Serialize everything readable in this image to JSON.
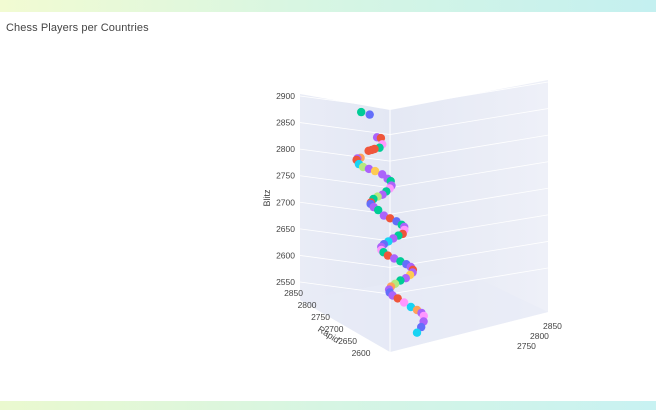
{
  "title": "Chess Players per Countries",
  "chart_data": {
    "type": "scatter",
    "title": "Chess Players per Countries",
    "axes": {
      "z": {
        "label": "Blitz",
        "ticks": [
          2550,
          2600,
          2650,
          2700,
          2750,
          2800,
          2850,
          2900
        ],
        "range": [
          2550,
          2900
        ]
      },
      "y": {
        "label": "Rapid",
        "ticks": [
          2600,
          2650,
          2700,
          2750,
          2800,
          2850
        ]
      },
      "x": {
        "label": "",
        "ticks": [
          2750,
          2800,
          2850
        ]
      }
    },
    "grid": true,
    "points": [
      {
        "rapid": 2760,
        "blitz": 2878,
        "color": "#00cc96"
      },
      {
        "rapid": 2745,
        "blitz": 2875,
        "color": "#636efa"
      },
      {
        "rapid": 2730,
        "blitz": 2834,
        "color": "#ab63fa"
      },
      {
        "rapid": 2725,
        "blitz": 2833,
        "color": "#ef553b"
      },
      {
        "rapid": 2720,
        "blitz": 2822,
        "color": "#ff97ff"
      },
      {
        "rapid": 2725,
        "blitz": 2815,
        "color": "#00cc96"
      },
      {
        "rapid": 2730,
        "blitz": 2812,
        "color": "#ef553b"
      },
      {
        "rapid": 2715,
        "blitz": 2812,
        "color": "#ef553b"
      },
      {
        "rapid": 2700,
        "blitz": 2812,
        "color": "#ef553b"
      },
      {
        "rapid": 2715,
        "blitz": 2797,
        "color": "#ffa15a"
      },
      {
        "rapid": 2712,
        "blitz": 2796,
        "color": "#ab63fa"
      },
      {
        "rapid": 2708,
        "blitz": 2794,
        "color": "#ef553b"
      },
      {
        "rapid": 2700,
        "blitz": 2787,
        "color": "#19d3f3"
      },
      {
        "rapid": 2695,
        "blitz": 2782,
        "color": "#b6e880"
      },
      {
        "rapid": 2690,
        "blitz": 2779,
        "color": "#ab63fa"
      },
      {
        "rapid": 2688,
        "blitz": 2775,
        "color": "#fecb52"
      },
      {
        "rapid": 2680,
        "blitz": 2770,
        "color": "#ab63fa"
      },
      {
        "rapid": 2675,
        "blitz": 2762,
        "color": "#ab63fa"
      },
      {
        "rapid": 2672,
        "blitz": 2758,
        "color": "#00cc96"
      },
      {
        "rapid": 2668,
        "blitz": 2750,
        "color": "#ab63fa"
      },
      {
        "rapid": 2665,
        "blitz": 2745,
        "color": "#ff97ff"
      },
      {
        "rapid": 2660,
        "blitz": 2740,
        "color": "#00cc96"
      },
      {
        "rapid": 2650,
        "blitz": 2735,
        "color": "#ab63fa"
      },
      {
        "rapid": 2645,
        "blitz": 2732,
        "color": "#b6e880"
      },
      {
        "rapid": 2640,
        "blitz": 2728,
        "color": "#00cc96"
      },
      {
        "rapid": 2635,
        "blitz": 2722,
        "color": "#ef553b"
      },
      {
        "rapid": 2630,
        "blitz": 2720,
        "color": "#636efa"
      },
      {
        "rapid": 2620,
        "blitz": 2715,
        "color": "#ab63fa"
      },
      {
        "rapid": 2615,
        "blitz": 2710,
        "color": "#00cc96"
      },
      {
        "rapid": 2612,
        "blitz": 2700,
        "color": "#ab63fa"
      },
      {
        "rapid": 2610,
        "blitz": 2695,
        "color": "#ef553b"
      },
      {
        "rapid": 2605,
        "blitz": 2690,
        "color": "#636efa"
      },
      {
        "rapid": 2600,
        "blitz": 2684,
        "color": "#00cc96"
      },
      {
        "rapid": 2598,
        "blitz": 2680,
        "color": "#ab63fa"
      },
      {
        "rapid": 2595,
        "blitz": 2675,
        "color": "#ff97ff"
      },
      {
        "rapid": 2590,
        "blitz": 2668,
        "color": "#ef553b"
      },
      {
        "rapid": 2588,
        "blitz": 2665,
        "color": "#00cc96"
      },
      {
        "rapid": 2585,
        "blitz": 2660,
        "color": "#ab63fa"
      },
      {
        "rapid": 2580,
        "blitz": 2655,
        "color": "#19d3f3"
      },
      {
        "rapid": 2578,
        "blitz": 2650,
        "color": "#636efa"
      },
      {
        "rapid": 2575,
        "blitz": 2645,
        "color": "#ab63fa"
      },
      {
        "rapid": 2570,
        "blitz": 2640,
        "color": "#ff97ff"
      },
      {
        "rapid": 2568,
        "blitz": 2636,
        "color": "#00cc96"
      },
      {
        "rapid": 2565,
        "blitz": 2630,
        "color": "#ef553b"
      },
      {
        "rapid": 2560,
        "blitz": 2625,
        "color": "#ab63fa"
      },
      {
        "rapid": 2558,
        "blitz": 2620,
        "color": "#00cc96"
      },
      {
        "rapid": 2555,
        "blitz": 2615,
        "color": "#636efa"
      },
      {
        "rapid": 2552,
        "blitz": 2610,
        "color": "#ab63fa"
      },
      {
        "rapid": 2550,
        "blitz": 2605,
        "color": "#ef553b"
      },
      {
        "rapid": 2548,
        "blitz": 2600,
        "color": "#ab63fa"
      },
      {
        "rapid": 2545,
        "blitz": 2596,
        "color": "#fecb52"
      },
      {
        "rapid": 2542,
        "blitz": 2590,
        "color": "#ab63fa"
      },
      {
        "rapid": 2540,
        "blitz": 2586,
        "color": "#00cc96"
      },
      {
        "rapid": 2538,
        "blitz": 2580,
        "color": "#b6e880"
      },
      {
        "rapid": 2535,
        "blitz": 2575,
        "color": "#ffa15a"
      },
      {
        "rapid": 2530,
        "blitz": 2570,
        "color": "#ab63fa"
      },
      {
        "rapid": 2525,
        "blitz": 2565,
        "color": "#636efa"
      },
      {
        "rapid": 2520,
        "blitz": 2560,
        "color": "#ab63fa"
      },
      {
        "rapid": 2515,
        "blitz": 2555,
        "color": "#ef553b"
      },
      {
        "rapid": 2510,
        "blitz": 2548,
        "color": "#ff97ff"
      },
      {
        "rapid": 2505,
        "blitz": 2540,
        "color": "#19d3f3"
      },
      {
        "rapid": 2500,
        "blitz": 2535,
        "color": "#ffa15a"
      },
      {
        "rapid": 2495,
        "blitz": 2530,
        "color": "#ab63fa"
      },
      {
        "rapid": 2490,
        "blitz": 2525,
        "color": "#ff97ff"
      },
      {
        "rapid": 2485,
        "blitz": 2515,
        "color": "#ab63fa"
      },
      {
        "rapid": 2480,
        "blitz": 2505,
        "color": "#636efa"
      },
      {
        "rapid": 2475,
        "blitz": 2495,
        "color": "#19d3f3"
      }
    ]
  }
}
